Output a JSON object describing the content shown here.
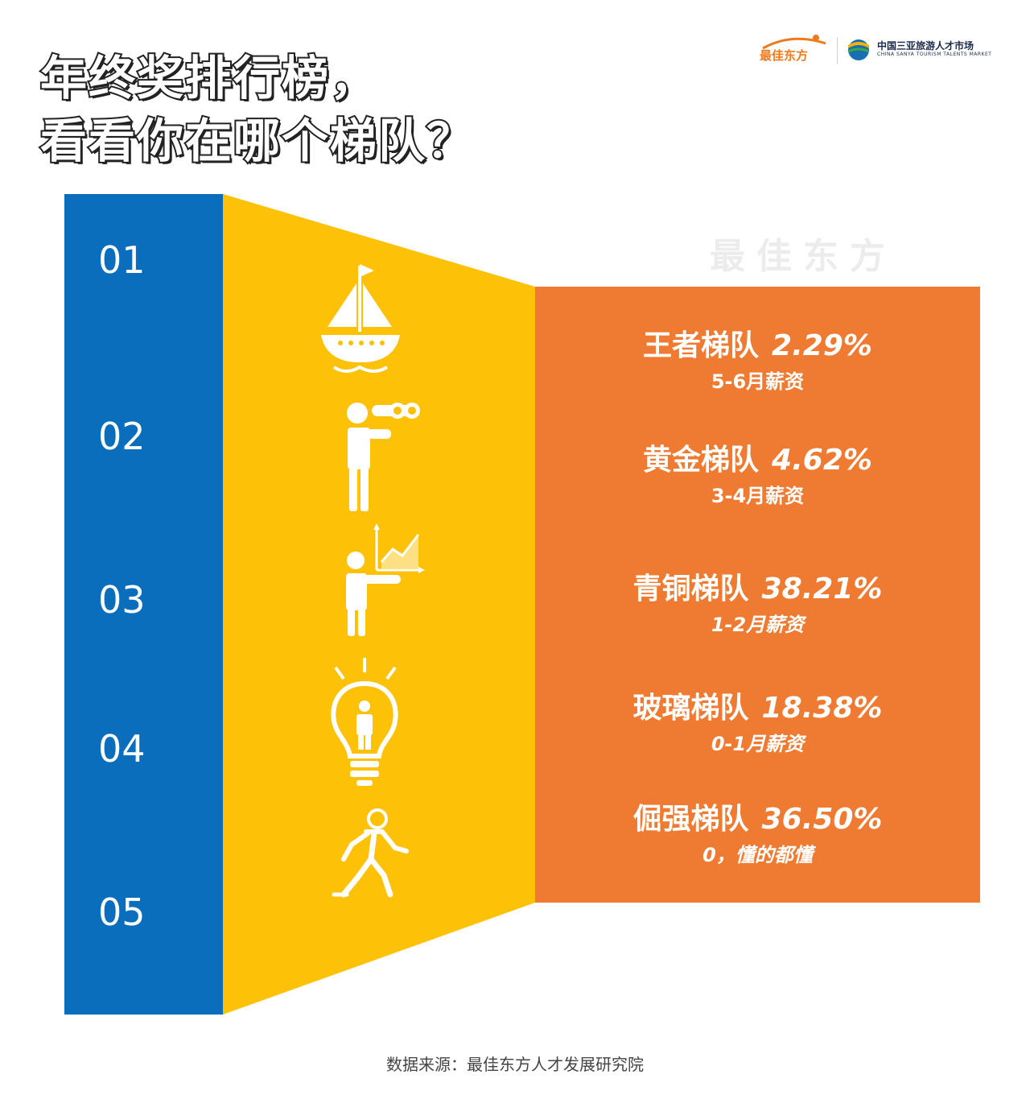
{
  "title": {
    "line1": "年终奖排行榜，",
    "line2": "看看你在哪个梯队？"
  },
  "brand": {
    "name_cn": "最佳东方",
    "market_cn": "中国三亚旅游人才市场",
    "market_en": "CHINA SANYA TOURISM TALENTS MARKET"
  },
  "watermark": "最佳东方",
  "tiers": [
    {
      "num": "01",
      "name": "王者梯队",
      "percent": "2.29%",
      "sub": "5-6月薪资",
      "icon": "sailboat-icon"
    },
    {
      "num": "02",
      "name": "黄金梯队",
      "percent": "4.62%",
      "sub": "3-4月薪资",
      "icon": "binoculars-person-icon"
    },
    {
      "num": "03",
      "name": "青铜梯队",
      "percent": "38.21%",
      "sub": "1-2月薪资",
      "icon": "presenter-chart-icon"
    },
    {
      "num": "04",
      "name": "玻璃梯队",
      "percent": "18.38%",
      "sub": "0-1月薪资",
      "icon": "lightbulb-person-icon"
    },
    {
      "num": "05",
      "name": "倔强梯队",
      "percent": "36.50%",
      "sub": "0，懂的都懂",
      "icon": "walking-person-icon"
    }
  ],
  "source": "数据来源：最佳东方人才发展研究院",
  "colors": {
    "blue": "#0a6ebd",
    "yellow": "#fdbf00",
    "orange": "#ee7b31",
    "brand_orange": "#ef7a1c"
  }
}
